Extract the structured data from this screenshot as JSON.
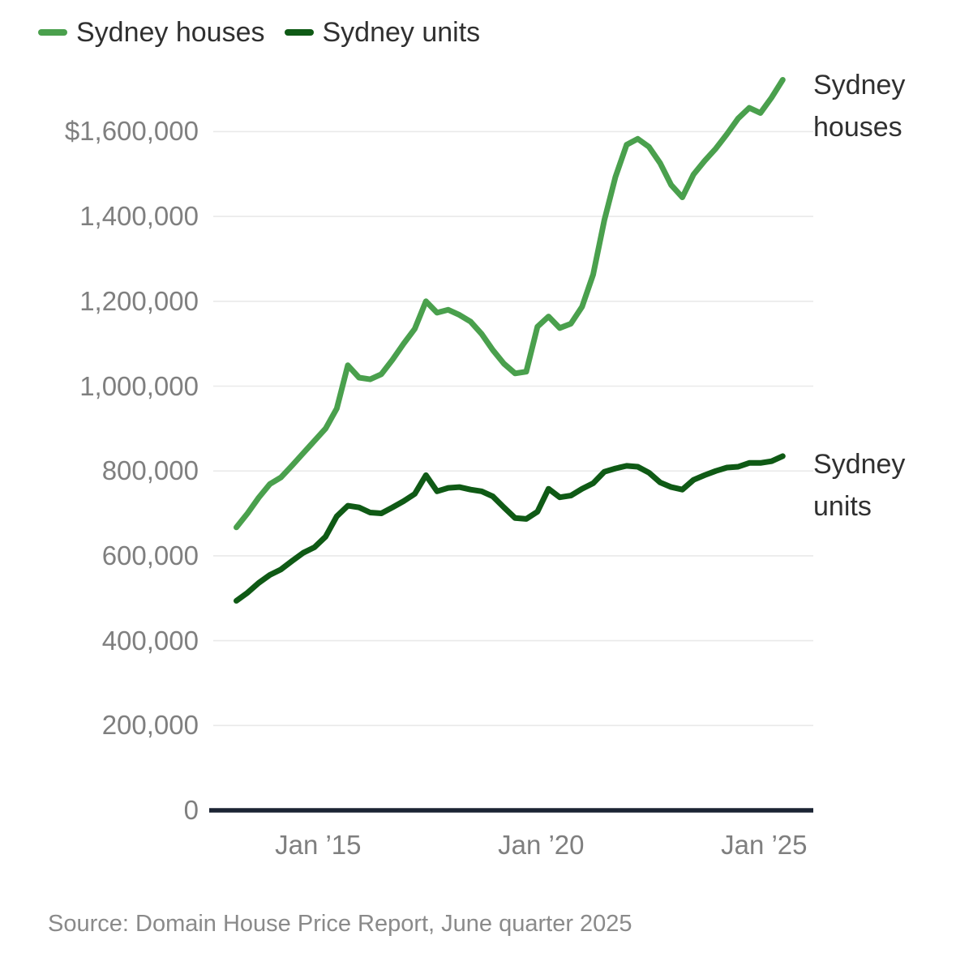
{
  "page": {
    "background": "#ffffff"
  },
  "legend": {
    "items": [
      {
        "label": "Sydney houses",
        "color": "#4aa04d"
      },
      {
        "label": "Sydney units",
        "color": "#0f5a15"
      }
    ]
  },
  "annotations": [
    {
      "text": "Sydney houses"
    },
    {
      "text": "Sydney units"
    }
  ],
  "source_note": "Source: Domain House Price Report, June quarter 2025",
  "chart_data": {
    "type": "line",
    "title": "",
    "xlabel": "",
    "ylabel": "",
    "legend_position": "top-left",
    "grid": "horizontal",
    "ylim": [
      0,
      1750000
    ],
    "x_quarters": [
      "Mar 2013",
      "Jun 2013",
      "Sep 2013",
      "Dec 2013",
      "Mar 2014",
      "Jun 2014",
      "Sep 2014",
      "Dec 2014",
      "Mar 2015",
      "Jun 2015",
      "Sep 2015",
      "Dec 2015",
      "Mar 2016",
      "Jun 2016",
      "Sep 2016",
      "Dec 2016",
      "Mar 2017",
      "Jun 2017",
      "Sep 2017",
      "Dec 2017",
      "Mar 2018",
      "Jun 2018",
      "Sep 2018",
      "Dec 2018",
      "Mar 2019",
      "Jun 2019",
      "Sep 2019",
      "Dec 2019",
      "Mar 2020",
      "Jun 2020",
      "Sep 2020",
      "Dec 2020",
      "Mar 2021",
      "Jun 2021",
      "Sep 2021",
      "Dec 2021",
      "Mar 2022",
      "Jun 2022",
      "Sep 2022",
      "Dec 2022",
      "Mar 2023",
      "Jun 2023",
      "Sep 2023",
      "Dec 2023",
      "Mar 2024",
      "Jun 2024",
      "Sep 2024",
      "Dec 2024",
      "Mar 2025",
      "Jun 2025"
    ],
    "series": [
      {
        "name": "Sydney houses",
        "color": "#4aa04d",
        "values": [
          667000,
          700000,
          737000,
          769000,
          785000,
          813000,
          842000,
          871000,
          900000,
          947000,
          1049000,
          1020000,
          1016000,
          1028000,
          1062000,
          1100000,
          1135000,
          1200000,
          1173000,
          1180000,
          1168000,
          1152000,
          1123000,
          1085000,
          1053000,
          1030000,
          1034000,
          1140000,
          1164000,
          1137000,
          1147000,
          1187000,
          1263000,
          1391000,
          1493000,
          1569000,
          1583000,
          1564000,
          1526000,
          1474000,
          1445000,
          1499000,
          1531000,
          1560000,
          1594000,
          1631000,
          1656000,
          1644000,
          1680000,
          1722000
        ]
      },
      {
        "name": "Sydney units",
        "color": "#0f5a15",
        "values": [
          494000,
          513000,
          536000,
          555000,
          568000,
          588000,
          607000,
          620000,
          645000,
          693000,
          718000,
          714000,
          702000,
          700000,
          714000,
          729000,
          746000,
          790000,
          752000,
          760000,
          762000,
          756000,
          752000,
          740000,
          714000,
          689000,
          687000,
          704000,
          758000,
          738000,
          742000,
          758000,
          771000,
          798000,
          806000,
          812000,
          810000,
          796000,
          773000,
          762000,
          756000,
          779000,
          790000,
          800000,
          808000,
          810000,
          819000,
          819000,
          823000,
          835000
        ]
      }
    ],
    "y_axis": {
      "ticks": [
        {
          "label": "$1,600,000",
          "value": 1600000
        },
        {
          "label": "1,400,000",
          "value": 1400000
        },
        {
          "label": "1,200,000",
          "value": 1200000
        },
        {
          "label": "1,000,000",
          "value": 1000000
        },
        {
          "label": "800,000",
          "value": 800000
        },
        {
          "label": "600,000",
          "value": 600000
        },
        {
          "label": "400,000",
          "value": 400000
        },
        {
          "label": "200,000",
          "value": 200000
        },
        {
          "label": "0",
          "value": 0
        }
      ]
    },
    "x_axis": {
      "ticks": [
        {
          "label": "Jan ’15",
          "quarter_index": 7.33
        },
        {
          "label": "Jan ’20",
          "quarter_index": 27.33
        },
        {
          "label": "Jan ’25",
          "quarter_index": 47.33
        }
      ]
    },
    "colors": {
      "axis_line": "#1b2433",
      "gridline": "#e9e9e9",
      "tick_text": "#7f7f7f",
      "label_text": "#303030"
    }
  }
}
